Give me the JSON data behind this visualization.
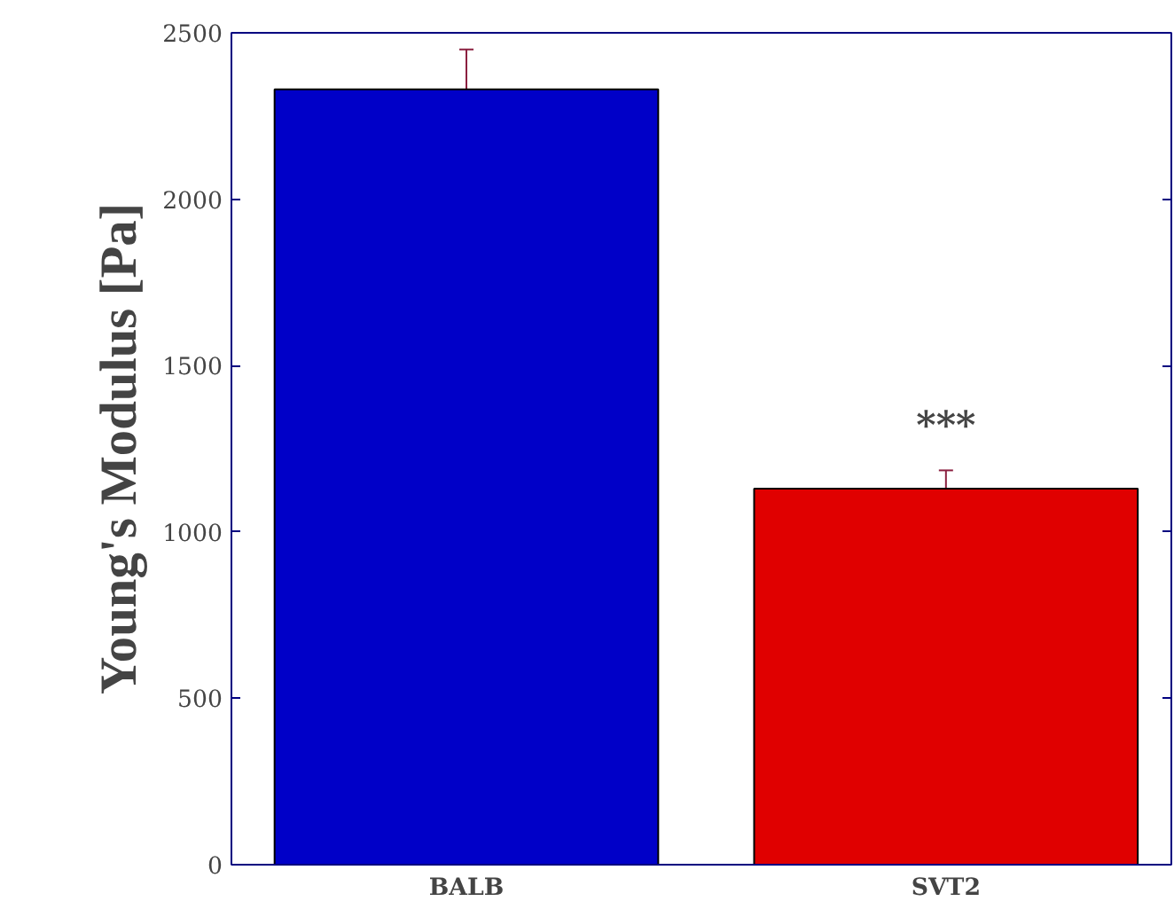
{
  "chart_data": {
    "type": "bar",
    "ylabel": "Young's Modulus [Pa]",
    "categories": [
      "BALB",
      "SVT2"
    ],
    "values": [
      2330,
      1130
    ],
    "colors": [
      "#0000c8",
      "#e00000"
    ],
    "errors": [
      120,
      55
    ],
    "ylim": [
      0,
      2500
    ],
    "yticks": [
      0,
      500,
      1000,
      1500,
      2000,
      2500
    ],
    "grid": false,
    "annotations": [
      "***"
    ]
  }
}
